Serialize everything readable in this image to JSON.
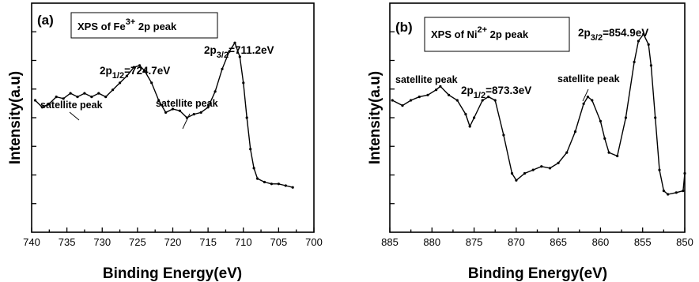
{
  "chart_data": [
    {
      "type": "line",
      "panel_label": "(a)",
      "legend": {
        "main": "XPS of Fe",
        "sup": "3+",
        "tail": " 2p peak"
      },
      "xlabel": "Binding Energy(eV)",
      "ylabel": "Intensity(a.u)",
      "xlim": [
        740,
        700
      ],
      "x_reversed": true,
      "x_ticks": [
        740,
        735,
        730,
        725,
        720,
        715,
        710,
        705,
        700
      ],
      "y_ticks_labeled": false,
      "ylim": [
        0,
        100
      ],
      "peak_labels": [
        {
          "id": "p12",
          "base": "2p",
          "sub": "1/2",
          "rest": "=724.7eV"
        },
        {
          "id": "p32",
          "base": "2p",
          "sub": "3/2",
          "rest": "=711.2eV"
        }
      ],
      "annotations": [
        {
          "id": "sat1",
          "text": "satellite peak",
          "arrow_to": [
            736.5,
            62
          ]
        },
        {
          "id": "sat2",
          "text": "satellite peak",
          "arrow_to": [
            720.5,
            56
          ]
        }
      ],
      "x": [
        739.5,
        738.5,
        737.5,
        736.5,
        735.5,
        734.5,
        733.5,
        732.5,
        731.5,
        730.5,
        729.5,
        728.5,
        727.5,
        726.5,
        725.5,
        724.7,
        724,
        723,
        722,
        721,
        720,
        719,
        718,
        717,
        716,
        715,
        714,
        713,
        712,
        711.2,
        710.5,
        710,
        709.5,
        709,
        708.5,
        708,
        707,
        706,
        705,
        704,
        703
      ],
      "y": [
        60,
        56,
        58,
        62,
        61,
        64,
        62,
        64,
        62,
        64,
        62,
        66,
        70,
        74,
        79,
        80,
        77,
        70,
        60,
        53,
        55,
        54,
        50,
        52,
        53,
        56,
        65,
        78,
        88,
        93,
        85,
        70,
        50,
        32,
        21,
        15,
        13,
        12,
        12,
        11,
        10
      ]
    },
    {
      "type": "line",
      "panel_label": "(b)",
      "legend": {
        "main": "XPS of Ni",
        "sup": "2+",
        "tail": " 2p peak"
      },
      "xlabel": "Binding Energy(eV)",
      "ylabel": "Intensity(a.u)",
      "xlim": [
        885,
        850
      ],
      "x_reversed": true,
      "x_ticks": [
        885,
        880,
        875,
        870,
        865,
        860,
        855,
        850
      ],
      "y_ticks_labeled": false,
      "ylim": [
        0,
        100
      ],
      "peak_labels": [
        {
          "id": "p12",
          "base": "2p",
          "sub": "1/2",
          "rest": "=873.3eV"
        },
        {
          "id": "p32",
          "base": "2p",
          "sub": "3/2",
          "rest": "=854.9eV"
        }
      ],
      "annotations": [
        {
          "id": "sat1",
          "text": "satellite peak",
          "arrow_to": [
            879.3,
            67
          ]
        },
        {
          "id": "sat2",
          "text": "satellite peak",
          "arrow_to": [
            861.8,
            61
          ]
        }
      ],
      "x": [
        884.7,
        883.5,
        882.5,
        881.5,
        880.5,
        879.5,
        879,
        878,
        877,
        876,
        875.5,
        875,
        874,
        873.3,
        872.5,
        871.5,
        870.5,
        870,
        869,
        868,
        867,
        866,
        865,
        864,
        863,
        862,
        861.5,
        861,
        860,
        859.5,
        859,
        858,
        857,
        856,
        855.5,
        854.9,
        854.3,
        854,
        853.5,
        853,
        852.5,
        852,
        851,
        850.2,
        850
      ],
      "y": [
        60,
        57,
        60,
        62,
        63,
        66,
        68,
        63,
        60,
        52,
        45,
        50,
        60,
        62,
        60,
        40,
        18,
        14,
        18,
        20,
        22,
        21,
        24,
        30,
        42,
        58,
        62,
        60,
        48,
        38,
        30,
        28,
        50,
        82,
        94,
        98,
        92,
        80,
        50,
        20,
        8,
        6,
        7,
        8,
        18
      ]
    }
  ]
}
